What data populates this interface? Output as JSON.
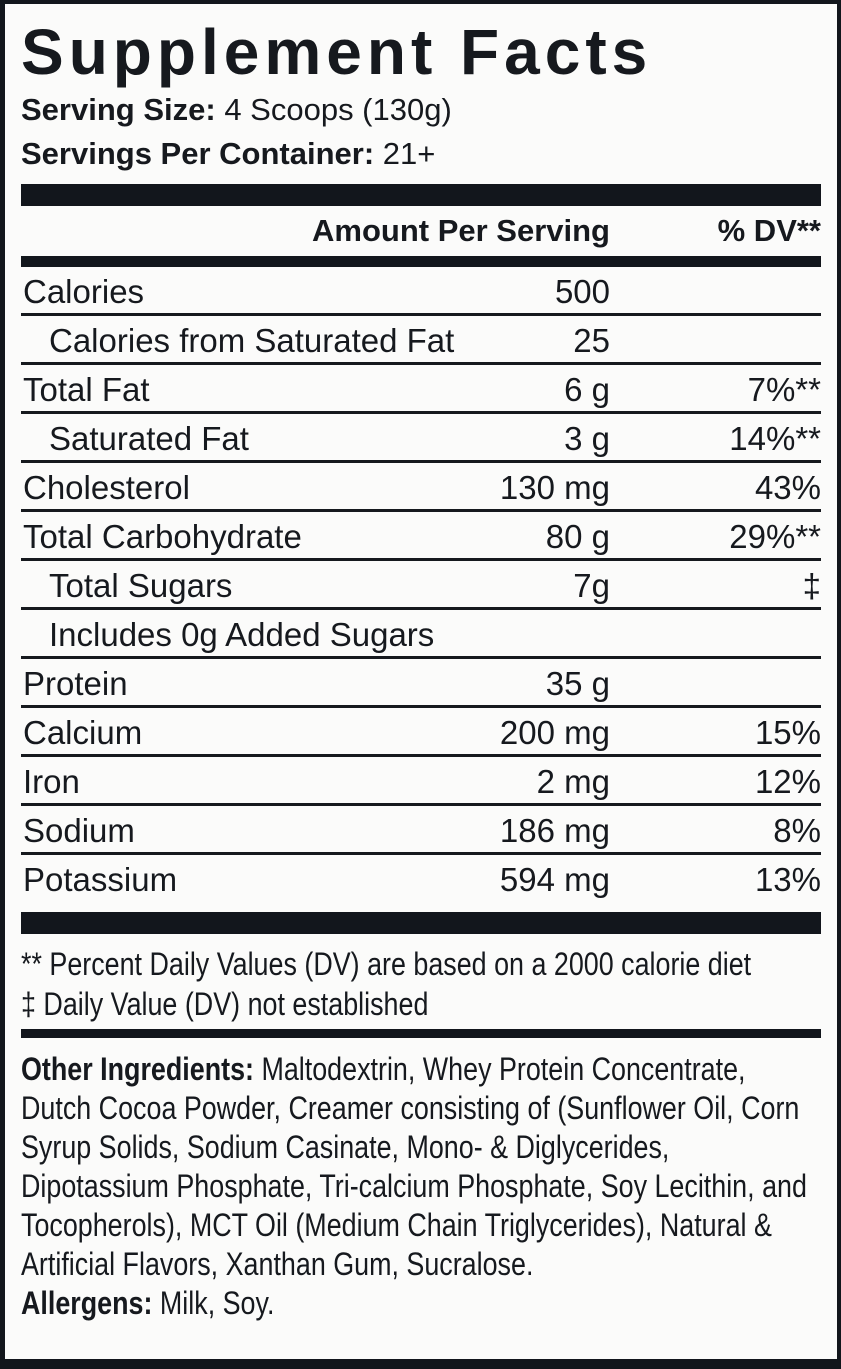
{
  "label": {
    "title": "Supplement Facts",
    "serving_size_label": "Serving Size:",
    "serving_size_value": "4 Scoops (130g)",
    "servings_label": "Servings Per Container:",
    "servings_value": "21+",
    "columns": {
      "amount": "Amount Per Serving",
      "dv": "% DV**"
    },
    "rows": [
      {
        "name": "Calories",
        "amount": "500",
        "dv": "",
        "indent": false
      },
      {
        "name": "Calories from Saturated Fat",
        "amount": "25",
        "dv": "",
        "indent": true
      },
      {
        "name": "Total Fat",
        "amount": "6 g",
        "dv": "7%**",
        "indent": false
      },
      {
        "name": "Saturated Fat",
        "amount": "3 g",
        "dv": "14%**",
        "indent": true
      },
      {
        "name": "Cholesterol",
        "amount": "130 mg",
        "dv": "43%",
        "indent": false
      },
      {
        "name": "Total Carbohydrate",
        "amount": "80 g",
        "dv": "29%**",
        "indent": false
      },
      {
        "name": "Total Sugars",
        "amount": "7g",
        "dv": "‡",
        "indent": true
      },
      {
        "name": "Includes 0g Added Sugars",
        "amount": "",
        "dv": "",
        "indent": true
      },
      {
        "name": "Protein",
        "amount": "35 g",
        "dv": "",
        "indent": false
      },
      {
        "name": "Calcium",
        "amount": "200 mg",
        "dv": "15%",
        "indent": false
      },
      {
        "name": "Iron",
        "amount": "2 mg",
        "dv": "12%",
        "indent": false
      },
      {
        "name": "Sodium",
        "amount": "186 mg",
        "dv": "8%",
        "indent": false
      },
      {
        "name": "Potassium",
        "amount": "594 mg",
        "dv": "13%",
        "indent": false
      }
    ],
    "footnotes": [
      "** Percent Daily Values (DV) are based on a 2000 calorie diet",
      "‡ Daily Value (DV) not established"
    ],
    "other_ingredients_label": "Other Ingredients:",
    "other_ingredients_text": " Maltodextrin, Whey Protein Concentrate, Dutch Cocoa Powder, Creamer consisting of (Sunflower Oil, Corn Syrup Solids, Sodium Casinate, Mono- & Diglycerides, Dipotassium Phosphate, Tri-calcium Phosphate, Soy Lecithin, and Tocopherols), MCT Oil (Medium Chain Triglycerides), Natural & Artificial Flavors, Xanthan Gum, Sucralose.",
    "allergens_label": "Allergens:",
    "allergens_text": " Milk, Soy.",
    "colors": {
      "text": "#16191e",
      "bar": "#12161c",
      "background": "#fbfbfa"
    }
  }
}
